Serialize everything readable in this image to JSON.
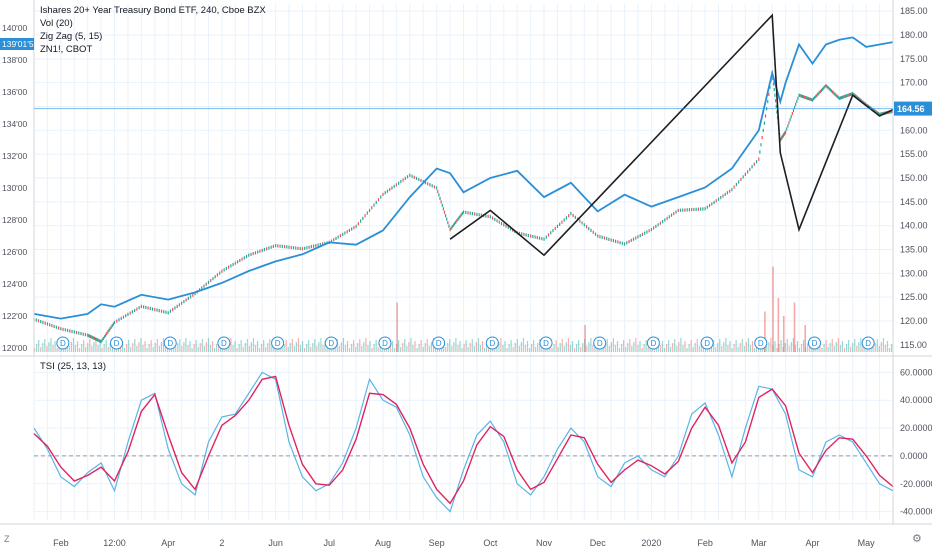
{
  "legend": {
    "line1": "Ishares 20+ Year Treasury Bond ETF, 240, Cboe BZX",
    "line2": "Vol (20)",
    "line3": "Zig Zag (5, 15)",
    "line4": "ZN1!, CBOT"
  },
  "tsi_legend": "TSI (25, 13, 13)",
  "corner_z": "Z",
  "colors": {
    "tlt": "#2a8fd6",
    "zn_up": "#26a69a",
    "zn_down": "#ef5350",
    "zigzag": "#1f1f1f",
    "tsi": "#5ab4e8",
    "tsi_signal": "#e0245e",
    "grid": "#e9f2fb",
    "axis_text": "#50535e"
  },
  "chart_data": [
    {
      "type": "line",
      "title": "",
      "x_ticks": [
        "Feb",
        "12:00",
        "Apr",
        "2",
        "Jun",
        "Jul",
        "Aug",
        "Sep",
        "Oct",
        "Nov",
        "Dec",
        "2020",
        "Feb",
        "Mar",
        "Apr",
        "May"
      ],
      "x_tick_positions": [
        1,
        3,
        5,
        7,
        9,
        11,
        13,
        15,
        17,
        19,
        21,
        23,
        25,
        27,
        29,
        31
      ],
      "x_range": [
        0,
        32
      ],
      "left_axis": {
        "ticks": [
          "120'00",
          "122'00",
          "124'00",
          "126'00",
          "128'00",
          "130'00",
          "132'00",
          "134'00",
          "136'00",
          "138'00",
          "140'00"
        ],
        "range": [
          119.75,
          141.5
        ],
        "current_label": "139'01'5"
      },
      "right_axis": {
        "ticks": [
          "115.00",
          "120.00",
          "125.00",
          "130.00",
          "135.00",
          "140.00",
          "145.00",
          "150.00",
          "155.00",
          "160.00",
          "165.00",
          "170.00",
          "175.00",
          "180.00",
          "185.00"
        ],
        "range": [
          113.5,
          186.5
        ],
        "current_label": "164.56",
        "current_value": 164.56
      },
      "series": [
        {
          "x": [
            0,
            1,
            2,
            2.5,
            3,
            4,
            5,
            6,
            7,
            8,
            9,
            10,
            11,
            12,
            13,
            14,
            15,
            15.5,
            16,
            17,
            18,
            19,
            20,
            21,
            22,
            23,
            24,
            25,
            26,
            27,
            27.5,
            27.8,
            28,
            28.5,
            29,
            29.5,
            30,
            30.5,
            31,
            31.5,
            32
          ],
          "y": [
            121.5,
            120.5,
            121.5,
            123.5,
            123,
            125.5,
            124.5,
            126,
            128,
            130.5,
            132.5,
            134,
            136.5,
            136,
            139,
            146,
            152,
            151,
            147,
            150,
            151.5,
            146,
            149,
            143,
            146.5,
            144,
            146,
            148,
            152,
            160,
            172,
            166,
            170,
            178,
            174,
            178,
            179,
            179.5,
            177.5,
            178,
            178.5
          ]
        },
        {
          "x": [
            0,
            1,
            2,
            2.5,
            3,
            4,
            5,
            6,
            7,
            8,
            9,
            10,
            11,
            12,
            13,
            14,
            15,
            15.5,
            16,
            17,
            18,
            19,
            20,
            21,
            22,
            23,
            24,
            25,
            26,
            27,
            27.5,
            27.8,
            28,
            28.5,
            29,
            29.5,
            30,
            30.5,
            31,
            31.5,
            32
          ],
          "y": [
            121.8,
            121.2,
            120.8,
            120.4,
            121.6,
            122.6,
            122.2,
            123.4,
            124.8,
            125.8,
            126.4,
            126.2,
            126.6,
            127.6,
            129.6,
            130.8,
            130.0,
            127.4,
            128.5,
            128.2,
            127.2,
            126.8,
            128.4,
            127.0,
            126.5,
            127.4,
            128.6,
            128.7,
            129.9,
            131.8,
            137.2,
            133.0,
            133.5,
            135.8,
            135.5,
            136.4,
            135.6,
            135.9,
            135.2,
            134.6,
            134.8
          ]
        }
      ],
      "zigzag": {
        "x": [
          15.5,
          17,
          19,
          27.5,
          27.8,
          28.5,
          30.5,
          31.5,
          32
        ],
        "y": [
          126.8,
          128.6,
          125.8,
          140.8,
          132.2,
          127.4,
          135.8,
          134.5,
          134.9
        ]
      },
      "volume": [
        {
          "x": 27.2,
          "v": 45
        },
        {
          "x": 27.5,
          "v": 95
        },
        {
          "x": 27.7,
          "v": 60
        },
        {
          "x": 27.9,
          "v": 40
        },
        {
          "x": 28.3,
          "v": 55
        },
        {
          "x": 28.7,
          "v": 30
        },
        {
          "x": 13.5,
          "v": 55
        },
        {
          "x": 20.5,
          "v": 30
        }
      ],
      "dividends": {
        "label": "D",
        "x": [
          1,
          3,
          5,
          7,
          9,
          11,
          13,
          15,
          17,
          19,
          21,
          23,
          25,
          27,
          29,
          31
        ]
      }
    },
    {
      "type": "line",
      "title": "TSI (25, 13, 13)",
      "y_ticks": [
        "60.0000",
        "40.0000",
        "20.0000",
        "0.0000",
        "-20.0000",
        "-40.0000"
      ],
      "y_range": [
        -46,
        66
      ],
      "zero_line": 0,
      "series": [
        {
          "x": [
            0,
            0.5,
            1,
            1.5,
            2,
            2.5,
            3,
            3.5,
            4,
            4.5,
            5,
            5.5,
            6,
            6.5,
            7,
            7.5,
            8,
            8.5,
            9,
            9.5,
            10,
            10.5,
            11,
            11.5,
            12,
            12.5,
            13,
            13.5,
            14,
            14.5,
            15,
            15.5,
            16,
            16.5,
            17,
            17.5,
            18,
            18.5,
            19,
            19.5,
            20,
            20.5,
            21,
            21.5,
            22,
            22.5,
            23,
            23.5,
            24,
            24.5,
            25,
            25.5,
            26,
            26.5,
            27,
            27.5,
            28,
            28.5,
            29,
            29.5,
            30,
            30.5,
            31,
            31.5,
            32
          ],
          "y": [
            20,
            5,
            -15,
            -22,
            -12,
            -5,
            -25,
            10,
            40,
            45,
            5,
            -20,
            -28,
            10,
            28,
            30,
            45,
            60,
            55,
            10,
            -15,
            -25,
            -20,
            -5,
            20,
            55,
            40,
            35,
            15,
            -15,
            -30,
            -40,
            -10,
            15,
            25,
            10,
            -20,
            -28,
            -15,
            5,
            20,
            10,
            -15,
            -22,
            -5,
            0,
            -10,
            -15,
            0,
            30,
            38,
            15,
            -15,
            20,
            50,
            48,
            30,
            -10,
            -15,
            10,
            15,
            10,
            -5,
            -20,
            -25
          ]
        },
        {
          "x": [
            0,
            0.5,
            1,
            1.5,
            2,
            2.5,
            3,
            3.5,
            4,
            4.5,
            5,
            5.5,
            6,
            6.5,
            7,
            7.5,
            8,
            8.5,
            9,
            9.5,
            10,
            10.5,
            11,
            11.5,
            12,
            12.5,
            13,
            13.5,
            14,
            14.5,
            15,
            15.5,
            16,
            16.5,
            17,
            17.5,
            18,
            18.5,
            19,
            19.5,
            20,
            20.5,
            21,
            21.5,
            22,
            22.5,
            23,
            23.5,
            24,
            24.5,
            25,
            25.5,
            26,
            26.5,
            27,
            27.5,
            28,
            28.5,
            29,
            29.5,
            30,
            30.5,
            31,
            31.5,
            32
          ],
          "y": [
            16,
            7,
            -8,
            -18,
            -14,
            -8,
            -18,
            3,
            32,
            44,
            15,
            -12,
            -24,
            0,
            22,
            29,
            40,
            55,
            57,
            22,
            -6,
            -20,
            -21,
            -10,
            12,
            45,
            44,
            37,
            20,
            -6,
            -24,
            -34,
            -18,
            8,
            21,
            14,
            -10,
            -24,
            -19,
            -2,
            15,
            13,
            -6,
            -19,
            -10,
            -3,
            -7,
            -13,
            -4,
            20,
            35,
            22,
            -5,
            10,
            42,
            48,
            36,
            2,
            -12,
            4,
            13,
            12,
            0,
            -14,
            -22
          ]
        }
      ]
    }
  ]
}
